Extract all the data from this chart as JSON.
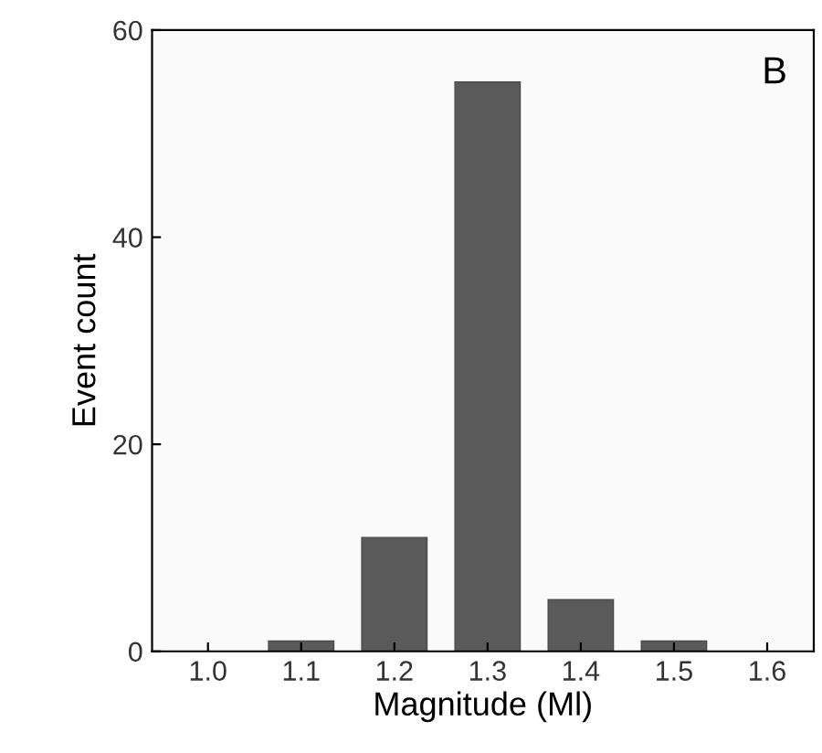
{
  "chart_data": {
    "type": "bar",
    "xlabel": "Magnitude (Ml)",
    "ylabel": "Event count",
    "categories": [
      "1.0",
      "1.1",
      "1.2",
      "1.3",
      "1.4",
      "1.5",
      "1.6"
    ],
    "values": [
      0,
      1,
      11,
      55,
      5,
      1,
      0
    ],
    "color": "#5a5a5a",
    "ylim": [
      0,
      60
    ],
    "yticks": [
      0,
      20,
      40,
      60
    ],
    "grid": false,
    "annotations": [
      "B"
    ]
  }
}
